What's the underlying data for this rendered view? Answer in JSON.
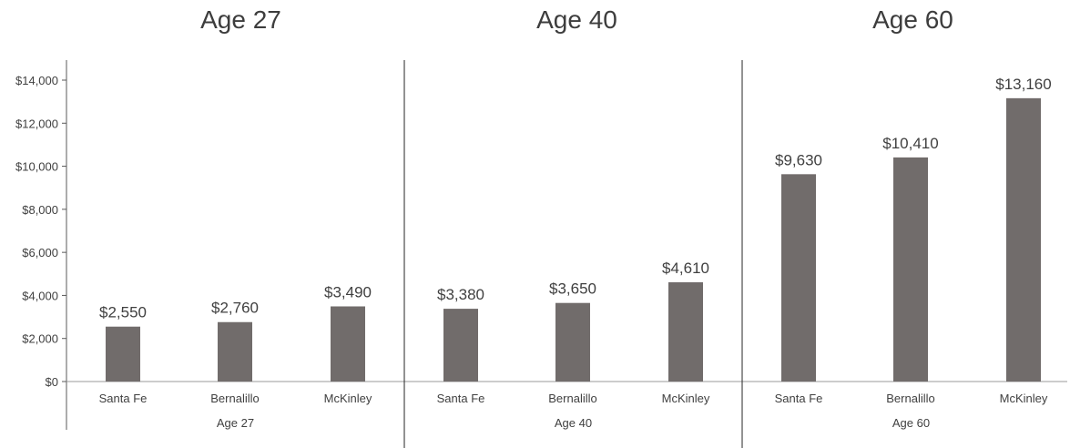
{
  "chart_data": {
    "type": "bar",
    "ylim": [
      0,
      14000
    ],
    "yticks": [
      0,
      2000,
      4000,
      6000,
      8000,
      10000,
      12000,
      14000
    ],
    "ytick_labels": [
      "$0",
      "$2,000",
      "$4,000",
      "$6,000",
      "$8,000",
      "$10,000",
      "$12,000",
      "$14,000"
    ],
    "bar_color": "#716c6b",
    "grid": false,
    "panels": [
      {
        "title": "Age 27",
        "group_label": "Age 27",
        "categories": [
          "Santa Fe",
          "Bernalillo",
          "McKinley"
        ],
        "values": [
          2550,
          2760,
          3490
        ],
        "value_labels": [
          "$2,550",
          "$2,760",
          "$3,490"
        ]
      },
      {
        "title": "Age 40",
        "group_label": "Age 40",
        "categories": [
          "Santa Fe",
          "Bernalillo",
          "McKinley"
        ],
        "values": [
          3380,
          3650,
          4610
        ],
        "value_labels": [
          "$3,380",
          "$3,650",
          "$4,610"
        ]
      },
      {
        "title": "Age 60",
        "group_label": "Age 60",
        "categories": [
          "Santa Fe",
          "Bernalillo",
          "McKinley"
        ],
        "values": [
          9630,
          10410,
          13160
        ],
        "value_labels": [
          "$9,630",
          "$10,410",
          "$13,160"
        ]
      }
    ]
  }
}
